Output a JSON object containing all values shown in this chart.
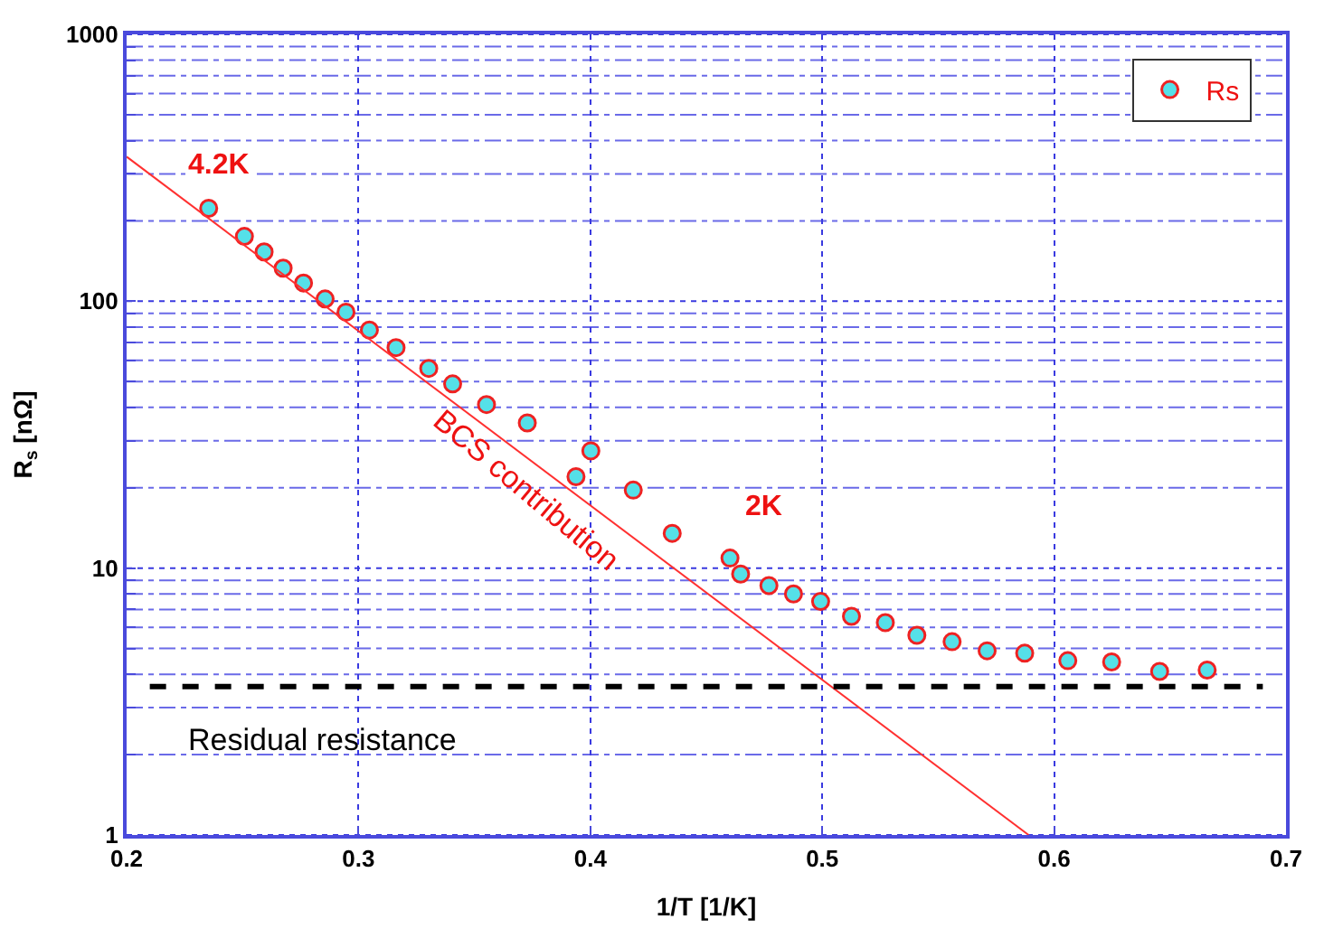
{
  "chart_data": {
    "type": "scatter",
    "xlabel": "1/T [1/K]",
    "ylabel": "R$_{s}$ [nΩ]",
    "log": "y",
    "xlim": [
      0.2,
      0.7
    ],
    "xticks": [
      0.2,
      0.3,
      0.4,
      0.5,
      0.6,
      0.7
    ],
    "ylim": [
      1,
      1000
    ],
    "yticks": [
      1,
      {
        "value": 2,
        "label": null
      },
      {
        "value": 3,
        "label": null
      },
      {
        "value": 4,
        "label": null
      },
      {
        "value": 5,
        "label": null
      },
      {
        "value": 6,
        "label": null
      },
      {
        "value": 7,
        "label": null
      },
      {
        "value": 8,
        "label": null
      },
      {
        "value": 9,
        "label": null
      },
      10,
      {
        "value": 20,
        "label": null
      },
      {
        "value": 30,
        "label": null
      },
      {
        "value": 40,
        "label": null
      },
      {
        "value": 50,
        "label": null
      },
      {
        "value": 60,
        "label": null
      },
      {
        "value": 70,
        "label": null
      },
      {
        "value": 80,
        "label": null
      },
      {
        "value": 90,
        "label": null
      },
      100,
      {
        "value": 200,
        "label": null
      },
      {
        "value": 300,
        "label": null
      },
      {
        "value": 400,
        "label": null
      },
      {
        "value": 500,
        "label": null
      },
      {
        "value": 600,
        "label": null
      },
      {
        "value": 700,
        "label": null
      },
      {
        "value": 800,
        "label": null
      },
      {
        "value": 900,
        "label": null
      },
      1000
    ],
    "grid": true,
    "legend": "top right",
    "marker": "circle",
    "series": [
      {
        "name": "Rs",
        "color": "#55e0e8",
        "x": [
          0.2354,
          0.2508,
          0.2593,
          0.2675,
          0.2763,
          0.2856,
          0.2946,
          0.3047,
          0.3162,
          0.3303,
          0.3406,
          0.3552,
          0.3728,
          0.3938,
          0.4002,
          0.4185,
          0.4353,
          0.4602,
          0.4648,
          0.477,
          0.4876,
          0.4993,
          0.5126,
          0.5272,
          0.5408,
          0.556,
          0.5711,
          0.5873,
          0.6059,
          0.6248,
          0.6455,
          0.666
        ],
        "values": [
          223,
          175,
          153,
          133,
          117,
          102,
          91,
          78,
          67,
          56,
          49,
          41,
          35,
          22,
          27.5,
          19.6,
          13.5,
          10.9,
          9.5,
          8.6,
          8.0,
          7.5,
          6.6,
          6.25,
          5.6,
          5.3,
          4.9,
          4.8,
          4.5,
          4.45,
          4.1,
          4.15
        ]
      },
      {
        "type": "line",
        "color": "#ff3030",
        "marker": "none",
        "x": [
          0.2,
          0.589
        ],
        "values": [
          348,
          1
        ]
      }
    ],
    "ref_lines": [
      {
        "axis": "y",
        "value": 3.6,
        "label": "Residual resistance",
        "color": "#000000",
        "line_style": "dashed"
      }
    ],
    "annotations": [
      "4.2K",
      "2K",
      "BCS contribution"
    ]
  }
}
